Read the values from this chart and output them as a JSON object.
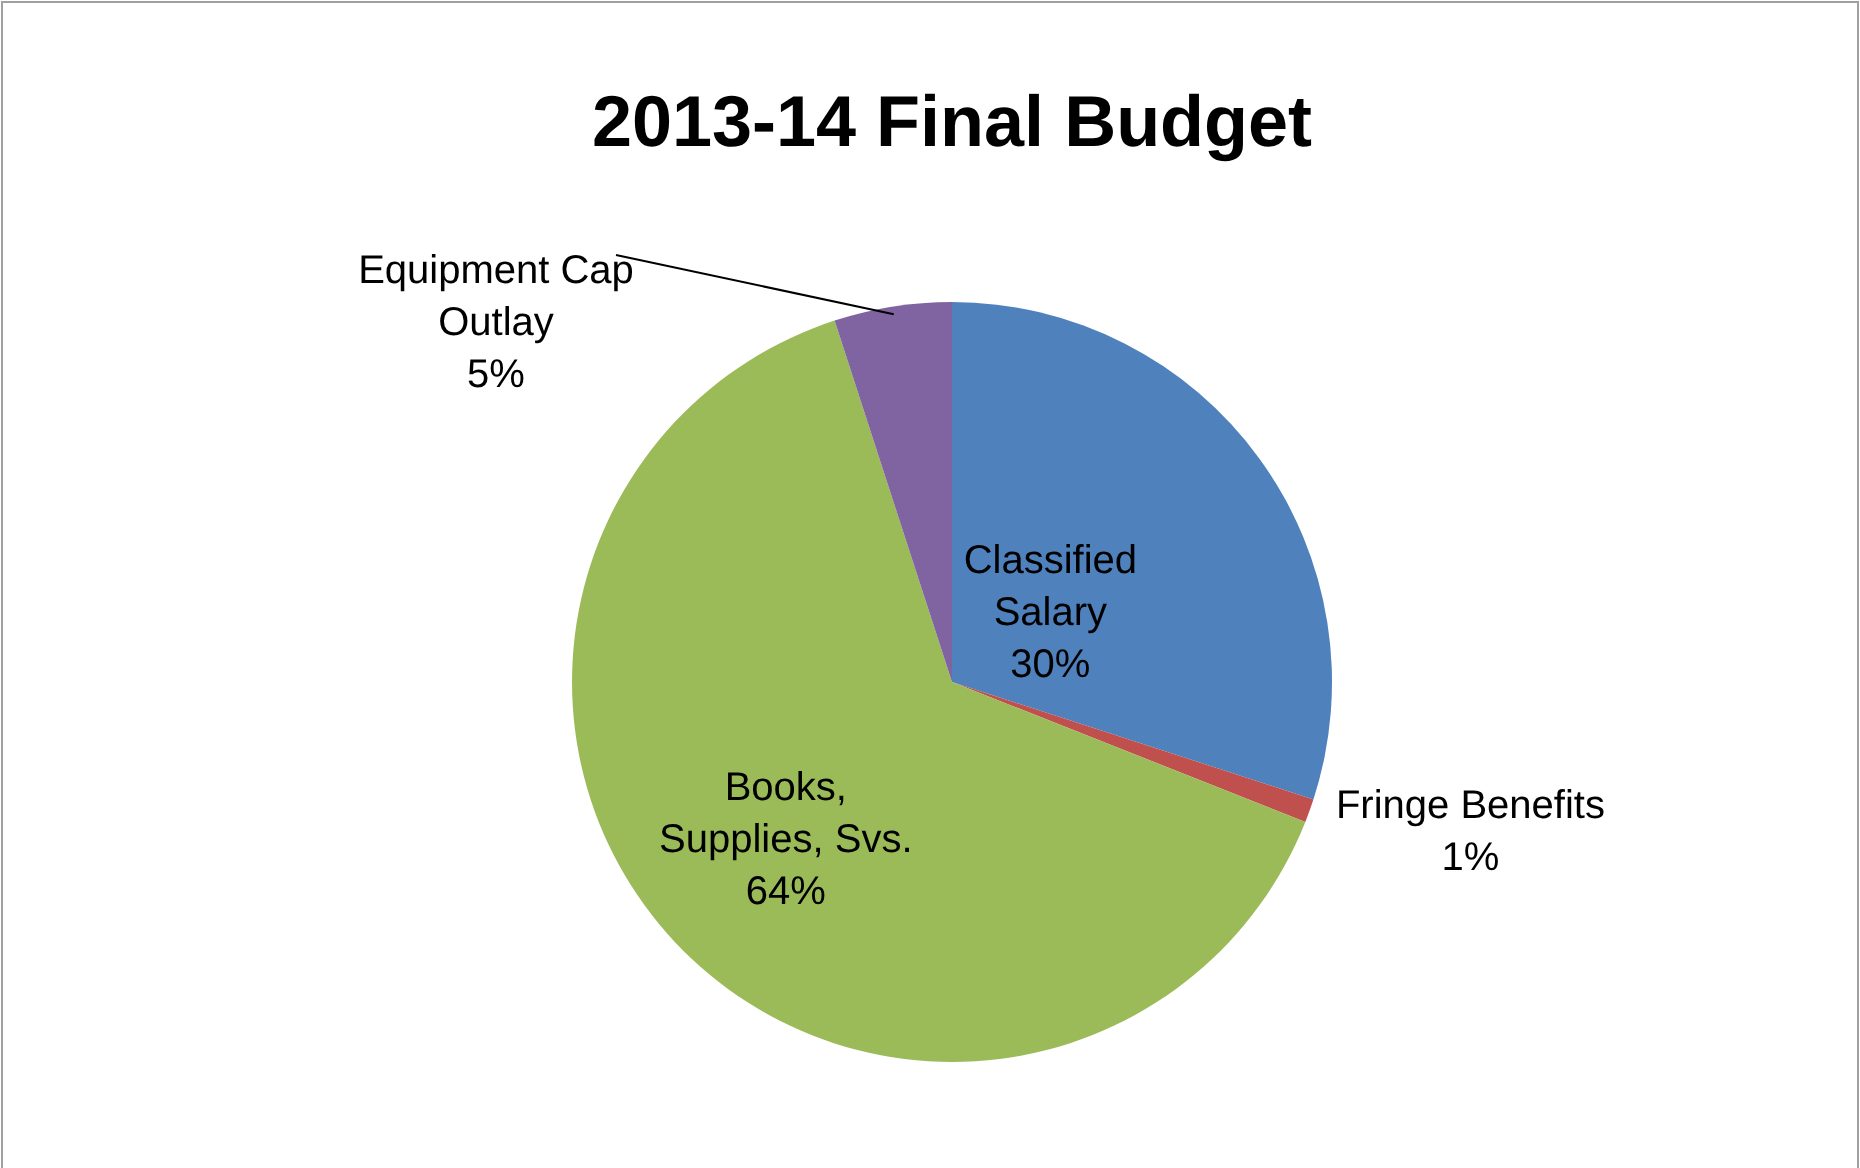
{
  "chart_data": {
    "type": "pie",
    "title": "2013-14 Final Budget",
    "categories": [
      "Classified Salary",
      "Fringe Benefits",
      "Books, Supplies, Svs.",
      "Equipment Cap Outlay"
    ],
    "values": [
      30,
      1,
      64,
      5
    ],
    "colors": [
      "#4f81bd",
      "#c0504d",
      "#9bbb59",
      "#8064a2"
    ],
    "value_labels": [
      "30%",
      "1%",
      "64%",
      "5%"
    ]
  }
}
